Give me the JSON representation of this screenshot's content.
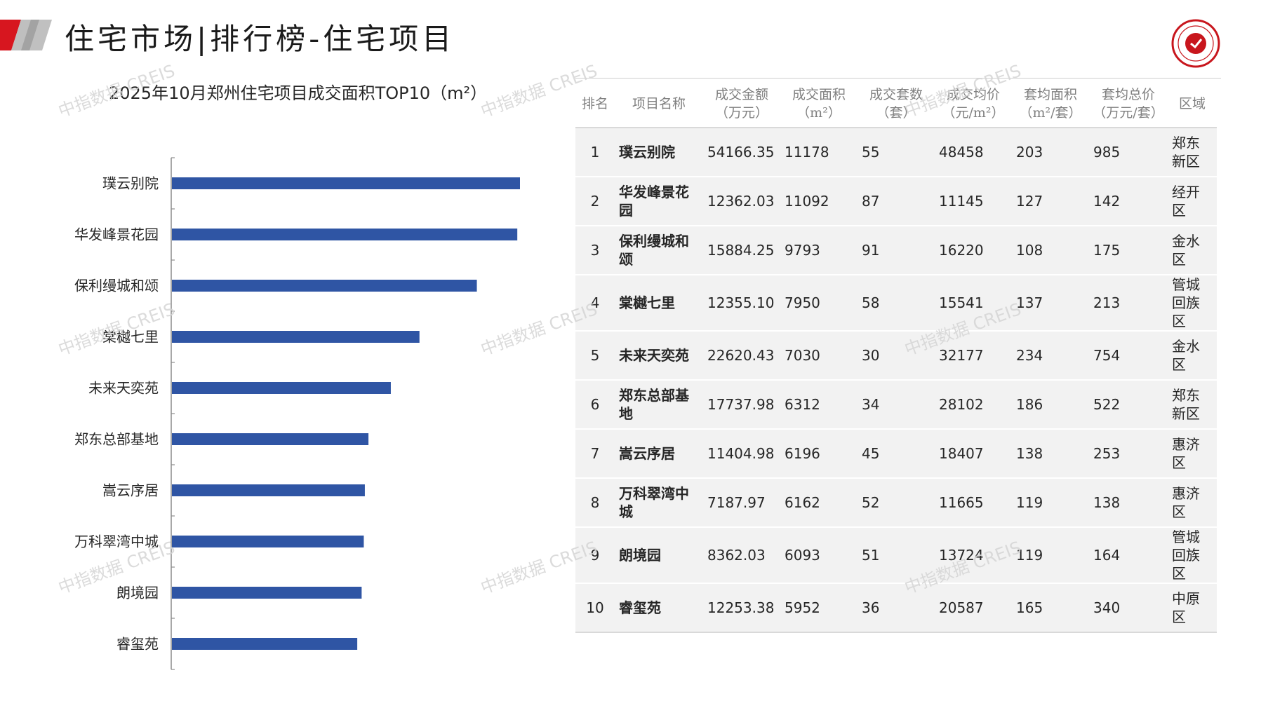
{
  "header": {
    "title": "住宅市场|排行榜-住宅项目",
    "accent_color": "#d7161f"
  },
  "watermark_text": "中指数据 CREIS",
  "chart_data": {
    "type": "bar",
    "orientation": "horizontal",
    "title": "2025年10月郑州住宅项目成交面积TOP10（m²）",
    "categories": [
      "璞云别院",
      "华发峰景花园",
      "保利缦城和颂",
      "棠樾七里",
      "未来天奕苑",
      "郑东总部基地",
      "嵩云序居",
      "万科翠湾中城",
      "朗境园",
      "睿玺苑"
    ],
    "values": [
      11178,
      11092,
      9793,
      7950,
      7030,
      6312,
      6196,
      6162,
      6093,
      5952
    ],
    "xlim": [
      0,
      12000
    ],
    "bar_color": "#2f55a4",
    "grid": false,
    "legend": "none"
  },
  "table": {
    "headers": [
      {
        "line1": "排名",
        "line2": ""
      },
      {
        "line1": "项目名称",
        "line2": ""
      },
      {
        "line1": "成交金额",
        "line2": "（万元）"
      },
      {
        "line1": "成交面积",
        "line2": "（m²）"
      },
      {
        "line1": "成交套数",
        "line2": "（套）"
      },
      {
        "line1": "成交均价",
        "line2": "（元/m²）"
      },
      {
        "line1": "套均面积",
        "line2": "（m²/套）"
      },
      {
        "line1": "套均总价",
        "line2": "（万元/套）"
      },
      {
        "line1": "区域",
        "line2": ""
      }
    ],
    "rows": [
      {
        "rank": "1",
        "name": "璞云别院",
        "amount": "54166.35",
        "area": "11178",
        "units": "55",
        "avg_price": "48458",
        "avg_area": "203",
        "avg_total": "985",
        "district": "郑东新区"
      },
      {
        "rank": "2",
        "name": "华发峰景花园",
        "amount": "12362.03",
        "area": "11092",
        "units": "87",
        "avg_price": "11145",
        "avg_area": "127",
        "avg_total": "142",
        "district": "经开区"
      },
      {
        "rank": "3",
        "name": "保利缦城和颂",
        "amount": "15884.25",
        "area": "9793",
        "units": "91",
        "avg_price": "16220",
        "avg_area": "108",
        "avg_total": "175",
        "district": "金水区"
      },
      {
        "rank": "4",
        "name": "棠樾七里",
        "amount": "12355.10",
        "area": "7950",
        "units": "58",
        "avg_price": "15541",
        "avg_area": "137",
        "avg_total": "213",
        "district": "管城回族区"
      },
      {
        "rank": "5",
        "name": "未来天奕苑",
        "amount": "22620.43",
        "area": "7030",
        "units": "30",
        "avg_price": "32177",
        "avg_area": "234",
        "avg_total": "754",
        "district": "金水区"
      },
      {
        "rank": "6",
        "name": "郑东总部基地",
        "amount": "17737.98",
        "area": "6312",
        "units": "34",
        "avg_price": "28102",
        "avg_area": "186",
        "avg_total": "522",
        "district": "郑东新区"
      },
      {
        "rank": "7",
        "name": "嵩云序居",
        "amount": "11404.98",
        "area": "6196",
        "units": "45",
        "avg_price": "18407",
        "avg_area": "138",
        "avg_total": "253",
        "district": "惠济区"
      },
      {
        "rank": "8",
        "name": "万科翠湾中城",
        "amount": "7187.97",
        "area": "6162",
        "units": "52",
        "avg_price": "11665",
        "avg_area": "119",
        "avg_total": "138",
        "district": "惠济区"
      },
      {
        "rank": "9",
        "name": "朗境园",
        "amount": "8362.03",
        "area": "6093",
        "units": "51",
        "avg_price": "13724",
        "avg_area": "119",
        "avg_total": "164",
        "district": "管城回族区"
      },
      {
        "rank": "10",
        "name": "睿玺苑",
        "amount": "12253.38",
        "area": "5952",
        "units": "36",
        "avg_price": "20587",
        "avg_area": "165",
        "avg_total": "340",
        "district": "中原区"
      }
    ]
  }
}
